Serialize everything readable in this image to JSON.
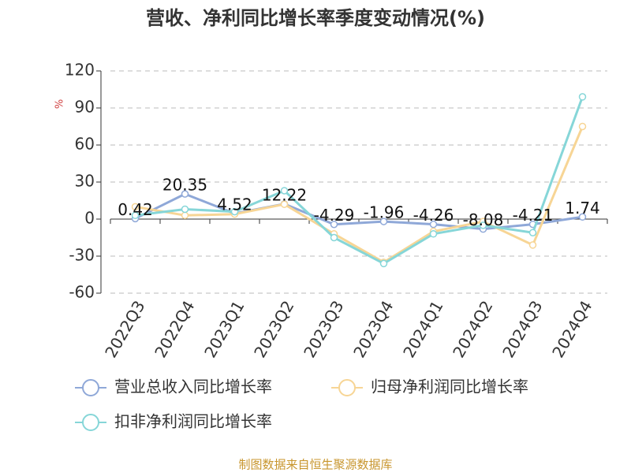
{
  "chart_data": {
    "type": "line",
    "title": "营收、净利同比增长率季度变动情况(%)",
    "y_label": "%",
    "categories": [
      "2022Q3",
      "2022Q4",
      "2023Q1",
      "2023Q2",
      "2023Q3",
      "2023Q4",
      "2024Q1",
      "2024Q2",
      "2024Q3",
      "2024Q4"
    ],
    "series": [
      {
        "name": "营业总收入同比增长率",
        "color": "#8fa8d8",
        "values": [
          0.42,
          20.35,
          4.52,
          12.22,
          -4.29,
          -1.96,
          -4.26,
          -8.08,
          -4.21,
          1.74
        ],
        "show_labels": true
      },
      {
        "name": "归母净利润同比增长率",
        "color": "#f7d595",
        "values": [
          10,
          3,
          4,
          12,
          -12,
          -35,
          -10,
          -2,
          -21,
          75
        ],
        "show_labels": false
      },
      {
        "name": "扣非净利润同比增长率",
        "color": "#86d6d8",
        "values": [
          3,
          8,
          6,
          23,
          -15,
          -36,
          -12,
          -5,
          -11,
          99
        ],
        "show_labels": false
      }
    ],
    "ylim": [
      -60,
      120
    ],
    "yticks": [
      -60,
      -30,
      0,
      30,
      60,
      90,
      120
    ],
    "grid": true,
    "source": "制图数据来自恒生聚源数据库"
  }
}
